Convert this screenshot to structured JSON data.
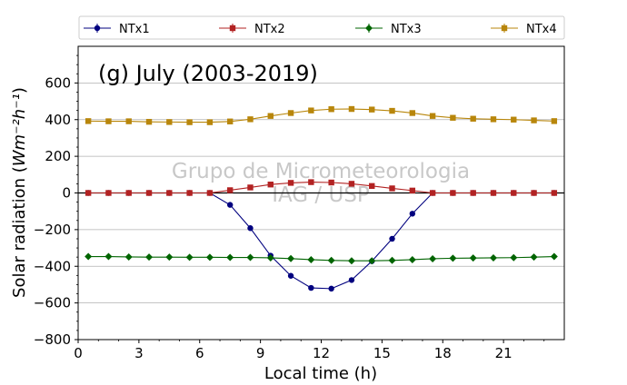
{
  "chart_data": {
    "type": "line",
    "title": "(g) July (2003-2019)",
    "xlabel": "Local time (h)",
    "ylabel_main": "Solar radiation (",
    "ylabel_unit_html": "Wm⁻²h⁻¹",
    "ylabel_close": ")",
    "xlim": [
      0,
      24
    ],
    "ylim": [
      -800,
      800
    ],
    "xticks": [
      0,
      3,
      6,
      9,
      12,
      15,
      18,
      21
    ],
    "xtick_labels": [
      "0",
      "3",
      "6",
      "9",
      "12",
      "15",
      "18",
      "21"
    ],
    "yticks": [
      -800,
      -600,
      -400,
      -200,
      0,
      200,
      400,
      600
    ],
    "ytick_labels": [
      "−800",
      "−600",
      "−400",
      "−200",
      "0",
      "200",
      "400",
      "600"
    ],
    "grid": "horizontal",
    "legend_position": "top",
    "watermark": [
      "Grupo de Micrometeorologia",
      "IAG / USP"
    ],
    "x": [
      0.5,
      1.5,
      2.5,
      3.5,
      4.5,
      5.5,
      6.5,
      7.5,
      8.5,
      9.5,
      10.5,
      11.5,
      12.5,
      13.5,
      14.5,
      15.5,
      16.5,
      17.5,
      18.5,
      19.5,
      20.5,
      21.5,
      22.5,
      23.5
    ],
    "series": [
      {
        "name": "NTx1",
        "color": "#00007f",
        "marker": "circle",
        "values": [
          0,
          0,
          0,
          0,
          0,
          0,
          0,
          -65,
          -192,
          -342,
          -452,
          -518,
          -522,
          -475,
          -372,
          -250,
          -113,
          0,
          0,
          0,
          0,
          0,
          0,
          0
        ]
      },
      {
        "name": "NTx2",
        "color": "#b22222",
        "marker": "square",
        "values": [
          0,
          0,
          0,
          0,
          0,
          0,
          0,
          15,
          30,
          46,
          55,
          59,
          57,
          50,
          38,
          25,
          13,
          0,
          0,
          0,
          0,
          0,
          0,
          0
        ]
      },
      {
        "name": "NTx3",
        "color": "#006400",
        "marker": "diamond",
        "values": [
          -347,
          -347,
          -349,
          -350,
          -350,
          -351,
          -351,
          -352,
          -352,
          -354,
          -358,
          -364,
          -368,
          -370,
          -370,
          -368,
          -364,
          -359,
          -356,
          -355,
          -354,
          -353,
          -350,
          -347
        ]
      },
      {
        "name": "NTx4",
        "color": "#b8860b",
        "marker": "square",
        "values": [
          392,
          391,
          391,
          388,
          387,
          386,
          386,
          390,
          402,
          420,
          436,
          450,
          457,
          458,
          455,
          448,
          436,
          420,
          410,
          405,
          402,
          400,
          396,
          392
        ]
      }
    ]
  }
}
